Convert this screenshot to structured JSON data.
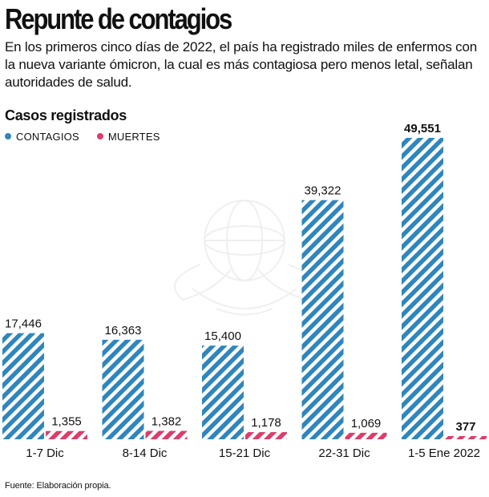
{
  "header": {
    "title": "Repunte de contagios",
    "subtitle": "En los primeros cinco días de 2022, el país ha registrado miles de enfermos con la nueva variante ómicron, la cual es más contagiosa pero menos letal, señalan autoridades de salud."
  },
  "footer": {
    "source": "Fuente: Elaboración propia."
  },
  "icons": {
    "watermark": "eagle-globe-emblem-icon"
  },
  "chart_data": {
    "type": "bar",
    "title": "Casos registrados",
    "categories": [
      "1-7 Dic",
      "8-14 Dic",
      "15-21 Dic",
      "22-31 Dic",
      "1-5 Ene 2022"
    ],
    "series": [
      {
        "name": "CONTAGIOS",
        "color": "#2f86bd",
        "values": [
          17446,
          16363,
          15400,
          39322,
          49551
        ],
        "labels": [
          "17,446",
          "16,363",
          "15,400",
          "39,322",
          "49,551"
        ]
      },
      {
        "name": "MUERTES",
        "color": "#dc3d6a",
        "values": [
          1355,
          1382,
          1178,
          1069,
          377
        ],
        "labels": [
          "1,355",
          "1,382",
          "1,178",
          "1,069",
          "377"
        ]
      }
    ],
    "emphasized_category": "1-5 Ene 2022",
    "ylim": [
      0,
      49551
    ],
    "grid": false,
    "legend_position": "top-left",
    "pattern": "diagonal-stripes"
  }
}
